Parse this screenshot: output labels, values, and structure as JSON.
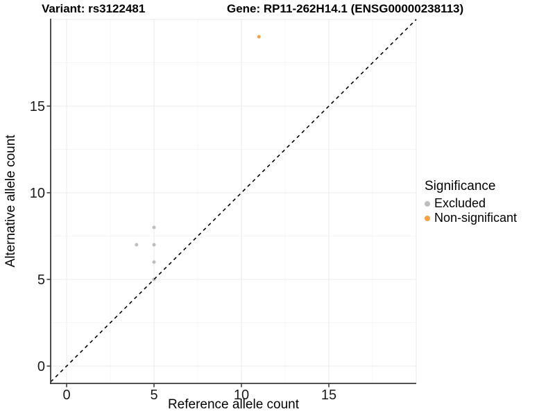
{
  "chart_data": {
    "type": "scatter",
    "title_left": "Variant: rs3122481",
    "title_right": "Gene: RP11-262H14.1 (ENSG00000238113)",
    "xlabel": "Reference allele count",
    "ylabel": "Alternative allele count",
    "xlim": [
      -1,
      20
    ],
    "ylim": [
      -1,
      20
    ],
    "x_ticks": [
      0,
      5,
      10,
      15
    ],
    "y_ticks": [
      0,
      5,
      10,
      15
    ],
    "grid_major": [
      0,
      5,
      10,
      15,
      20
    ],
    "grid_minor": [
      2.5,
      7.5,
      12.5,
      17.5
    ],
    "grid": true,
    "identity_line": {
      "equation": "y = x",
      "style": "dashed",
      "color": "#000000"
    },
    "series": [
      {
        "name": "Excluded",
        "color": "#BEBEBE",
        "points": [
          [
            4,
            7
          ],
          [
            5,
            7
          ],
          [
            5,
            8
          ],
          [
            5,
            6
          ],
          [
            5,
            5
          ]
        ]
      },
      {
        "name": "Non-significant",
        "color": "#F9A242",
        "points": [
          [
            11,
            19
          ]
        ]
      }
    ],
    "legend": {
      "title": "Significance",
      "position": "right"
    }
  },
  "style_colors": {
    "axis_line": "#3a3a3a",
    "tick_mark": "#333333",
    "tick_label": "#1a1a1a",
    "grid_major": "#ebebeb",
    "grid_minor": "#f5f5f5"
  }
}
